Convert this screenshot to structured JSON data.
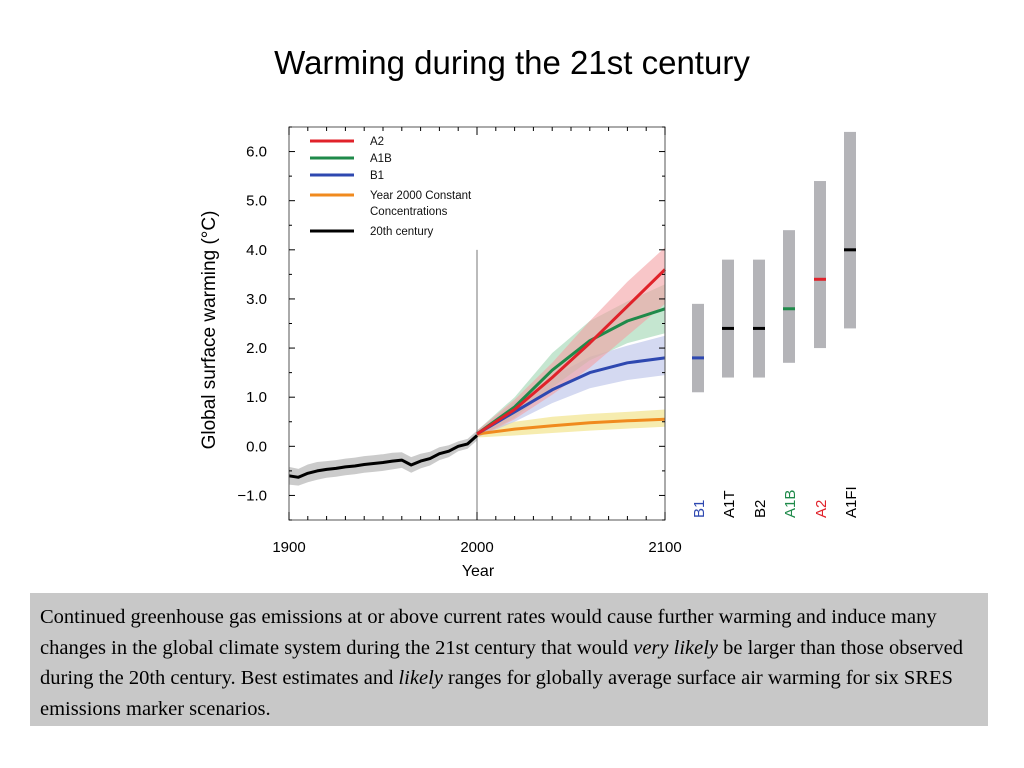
{
  "slide": {
    "title": "Warming during the 21st century"
  },
  "chart_data": [
    {
      "type": "line",
      "title": "",
      "xlabel": "Year",
      "ylabel": "Global surface warming (°C)",
      "xlim": [
        1900,
        2100
      ],
      "ylim": [
        -1.5,
        6.5
      ],
      "xticks": [
        1900,
        2000,
        2100
      ],
      "xtick_labels": [
        "1900",
        "2000",
        "2100"
      ],
      "yticks": [
        -1.0,
        0.0,
        1.0,
        2.0,
        3.0,
        4.0,
        5.0,
        6.0
      ],
      "ytick_labels": [
        "−1.0",
        "0.0",
        "1.0",
        "2.0",
        "3.0",
        "4.0",
        "5.0",
        "6.0"
      ],
      "vline_x": 2000,
      "legend_position": "top-left",
      "series": [
        {
          "name": "A2",
          "color": "#e0222a",
          "band_color": "#f4a0a4",
          "x": [
            2000,
            2020,
            2040,
            2060,
            2080,
            2100
          ],
          "values": [
            0.25,
            0.75,
            1.4,
            2.1,
            2.85,
            3.6
          ],
          "lower": [
            0.18,
            0.55,
            1.05,
            1.6,
            2.25,
            2.9
          ],
          "upper": [
            0.32,
            0.95,
            1.7,
            2.55,
            3.35,
            4.05
          ]
        },
        {
          "name": "A1B",
          "color": "#1f8a4a",
          "band_color": "#9ed5b0",
          "x": [
            2000,
            2020,
            2040,
            2060,
            2080,
            2100
          ],
          "values": [
            0.25,
            0.8,
            1.55,
            2.15,
            2.55,
            2.8
          ],
          "lower": [
            0.18,
            0.58,
            1.2,
            1.75,
            2.1,
            2.3
          ],
          "upper": [
            0.32,
            1.0,
            1.9,
            2.55,
            2.95,
            3.3
          ]
        },
        {
          "name": "B1",
          "color": "#2e48b0",
          "band_color": "#b8c0e8",
          "x": [
            2000,
            2020,
            2040,
            2060,
            2080,
            2100
          ],
          "values": [
            0.25,
            0.7,
            1.15,
            1.5,
            1.7,
            1.8
          ],
          "lower": [
            0.18,
            0.5,
            0.88,
            1.18,
            1.35,
            1.45
          ],
          "upper": [
            0.32,
            0.9,
            1.42,
            1.82,
            2.05,
            2.25
          ]
        },
        {
          "name": "Year 2000 Constant Concentrations",
          "color": "#f08a1e",
          "band_color": "#f0e07a",
          "x": [
            2000,
            2020,
            2040,
            2060,
            2080,
            2100
          ],
          "values": [
            0.25,
            0.35,
            0.42,
            0.48,
            0.52,
            0.55
          ],
          "lower": [
            0.18,
            0.22,
            0.27,
            0.32,
            0.36,
            0.4
          ],
          "upper": [
            0.32,
            0.5,
            0.6,
            0.66,
            0.7,
            0.75
          ]
        },
        {
          "name": "20th century",
          "color": "#000000",
          "band_color": "#a8a8a8",
          "x": [
            1900,
            1905,
            1910,
            1915,
            1920,
            1925,
            1930,
            1935,
            1940,
            1945,
            1950,
            1955,
            1960,
            1965,
            1970,
            1975,
            1980,
            1985,
            1990,
            1995,
            2000
          ],
          "values": [
            -0.6,
            -0.63,
            -0.55,
            -0.5,
            -0.47,
            -0.45,
            -0.42,
            -0.4,
            -0.37,
            -0.35,
            -0.33,
            -0.3,
            -0.28,
            -0.38,
            -0.3,
            -0.25,
            -0.15,
            -0.1,
            0.0,
            0.05,
            0.22
          ],
          "lower": [
            -0.78,
            -0.8,
            -0.73,
            -0.68,
            -0.64,
            -0.62,
            -0.59,
            -0.57,
            -0.54,
            -0.52,
            -0.5,
            -0.47,
            -0.44,
            -0.54,
            -0.45,
            -0.39,
            -0.28,
            -0.22,
            -0.1,
            -0.05,
            0.12
          ],
          "upper": [
            -0.42,
            -0.46,
            -0.37,
            -0.32,
            -0.3,
            -0.28,
            -0.25,
            -0.23,
            -0.2,
            -0.18,
            -0.16,
            -0.13,
            -0.12,
            -0.22,
            -0.15,
            -0.11,
            -0.02,
            0.02,
            0.1,
            0.15,
            0.32
          ]
        }
      ]
    },
    {
      "type": "bar",
      "title": "",
      "description_axis": "shared y-axis with line chart (Global surface warming, °C)",
      "ylim": [
        -1.5,
        6.5
      ],
      "categories": [
        "B1",
        "A1T",
        "B2",
        "A1B",
        "A2",
        "A1FI"
      ],
      "label_colors": [
        "#2e48b0",
        "#000000",
        "#000000",
        "#1f8a4a",
        "#e0222a",
        "#000000"
      ],
      "best_estimate": [
        1.8,
        2.4,
        2.4,
        2.8,
        3.4,
        4.0
      ],
      "likely_low": [
        1.1,
        1.4,
        1.4,
        1.7,
        2.0,
        2.4
      ],
      "likely_high": [
        2.9,
        3.8,
        3.8,
        4.4,
        5.4,
        6.4
      ],
      "marker_colors": [
        "#2e48b0",
        "#000000",
        "#000000",
        "#1f8a4a",
        "#e0222a",
        "#000000"
      ],
      "bar_color": "#b4b4b8"
    }
  ],
  "caption": {
    "part1": "Continued greenhouse gas emissions at or above current rates would cause further warming and induce many changes in the global climate system during the 21st century that would ",
    "em1": "very likely",
    "part2": " be larger than those observed during the 20th century. Best estimates and ",
    "em2": "likely",
    "part3": " ranges for globally average surface air warming for six SRES emissions marker scenarios."
  }
}
